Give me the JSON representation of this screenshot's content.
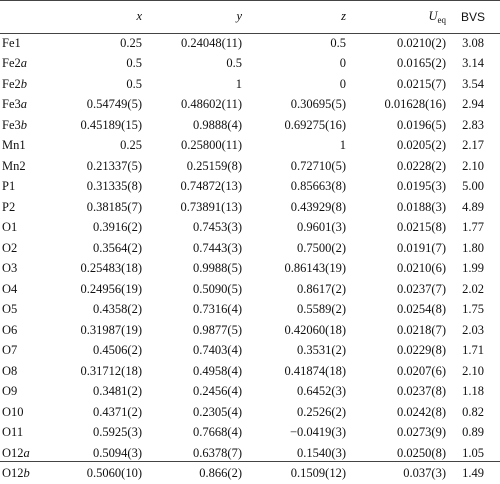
{
  "headers": {
    "x": "x",
    "y": "y",
    "z": "z",
    "u_main": "U",
    "u_sub": "eq",
    "bvs": "BVS"
  },
  "rows": [
    {
      "atom": "Fe1",
      "suffix": "",
      "x": "0.25",
      "y": "0.24048(11)",
      "z": "0.5",
      "u": "0.0210(2)",
      "bvs": "3.08"
    },
    {
      "atom": "Fe2",
      "suffix": "a",
      "x": "0.5",
      "y": "0.5",
      "z": "0",
      "u": "0.0165(2)",
      "bvs": "3.14"
    },
    {
      "atom": "Fe2",
      "suffix": "b",
      "x": "0.5",
      "y": "1",
      "z": "0",
      "u": "0.0215(7)",
      "bvs": "3.54"
    },
    {
      "atom": "Fe3",
      "suffix": "a",
      "x": "0.54749(5)",
      "y": "0.48602(11)",
      "z": "0.30695(5)",
      "u": "0.01628(16)",
      "bvs": "2.94"
    },
    {
      "atom": "Fe3",
      "suffix": "b",
      "x": "0.45189(15)",
      "y": "0.9888(4)",
      "z": "0.69275(16)",
      "u": "0.0196(5)",
      "bvs": "2.83"
    },
    {
      "atom": "Mn1",
      "suffix": "",
      "x": "0.25",
      "y": "0.25800(11)",
      "z": "1",
      "u": "0.0205(2)",
      "bvs": "2.17"
    },
    {
      "atom": "Mn2",
      "suffix": "",
      "x": "0.21337(5)",
      "y": "0.25159(8)",
      "z": "0.72710(5)",
      "u": "0.0228(2)",
      "bvs": "2.10"
    },
    {
      "atom": "P1",
      "suffix": "",
      "x": "0.31335(8)",
      "y": "0.74872(13)",
      "z": "0.85663(8)",
      "u": "0.0195(3)",
      "bvs": "5.00"
    },
    {
      "atom": "P2",
      "suffix": "",
      "x": "0.38185(7)",
      "y": "0.73891(13)",
      "z": "0.43929(8)",
      "u": "0.0188(3)",
      "bvs": "4.89"
    },
    {
      "atom": "O1",
      "suffix": "",
      "x": "0.3916(2)",
      "y": "0.7453(3)",
      "z": "0.9601(3)",
      "u": "0.0215(8)",
      "bvs": "1.77"
    },
    {
      "atom": "O2",
      "suffix": "",
      "x": "0.3564(2)",
      "y": "0.7443(3)",
      "z": "0.7500(2)",
      "u": "0.0191(7)",
      "bvs": "1.80"
    },
    {
      "atom": "O3",
      "suffix": "",
      "x": "0.25483(18)",
      "y": "0.9988(5)",
      "z": "0.86143(19)",
      "u": "0.0210(6)",
      "bvs": "1.99"
    },
    {
      "atom": "O4",
      "suffix": "",
      "x": "0.24956(19)",
      "y": "0.5090(5)",
      "z": "0.8617(2)",
      "u": "0.0237(7)",
      "bvs": "2.02"
    },
    {
      "atom": "O5",
      "suffix": "",
      "x": "0.4358(2)",
      "y": "0.7316(4)",
      "z": "0.5589(2)",
      "u": "0.0254(8)",
      "bvs": "1.75"
    },
    {
      "atom": "O6",
      "suffix": "",
      "x": "0.31987(19)",
      "y": "0.9877(5)",
      "z": "0.42060(18)",
      "u": "0.0218(7)",
      "bvs": "2.03"
    },
    {
      "atom": "O7",
      "suffix": "",
      "x": "0.4506(2)",
      "y": "0.7403(4)",
      "z": "0.3531(2)",
      "u": "0.0229(8)",
      "bvs": "1.71"
    },
    {
      "atom": "O8",
      "suffix": "",
      "x": "0.31712(18)",
      "y": "0.4958(4)",
      "z": "0.41874(18)",
      "u": "0.0207(6)",
      "bvs": "2.10"
    },
    {
      "atom": "O9",
      "suffix": "",
      "x": "0.3481(2)",
      "y": "0.2456(4)",
      "z": "0.6452(3)",
      "u": "0.0237(8)",
      "bvs": "1.18"
    },
    {
      "atom": "O10",
      "suffix": "",
      "x": "0.4371(2)",
      "y": "0.2305(4)",
      "z": "0.2526(2)",
      "u": "0.0242(8)",
      "bvs": "0.82"
    },
    {
      "atom": "O11",
      "suffix": "",
      "x": "0.5925(3)",
      "y": "0.7668(4)",
      "z": "−0.0419(3)",
      "u": "0.0273(9)",
      "bvs": "0.89"
    },
    {
      "atom": "O12",
      "suffix": "a",
      "x": "0.5094(3)",
      "y": "0.6378(7)",
      "z": "0.1540(3)",
      "u": "0.0250(8)",
      "bvs": "1.05"
    },
    {
      "atom": "O12",
      "suffix": "b",
      "x": "0.5060(10)",
      "y": "0.866(2)",
      "z": "0.1509(12)",
      "u": "0.037(3)",
      "bvs": "1.49"
    }
  ]
}
